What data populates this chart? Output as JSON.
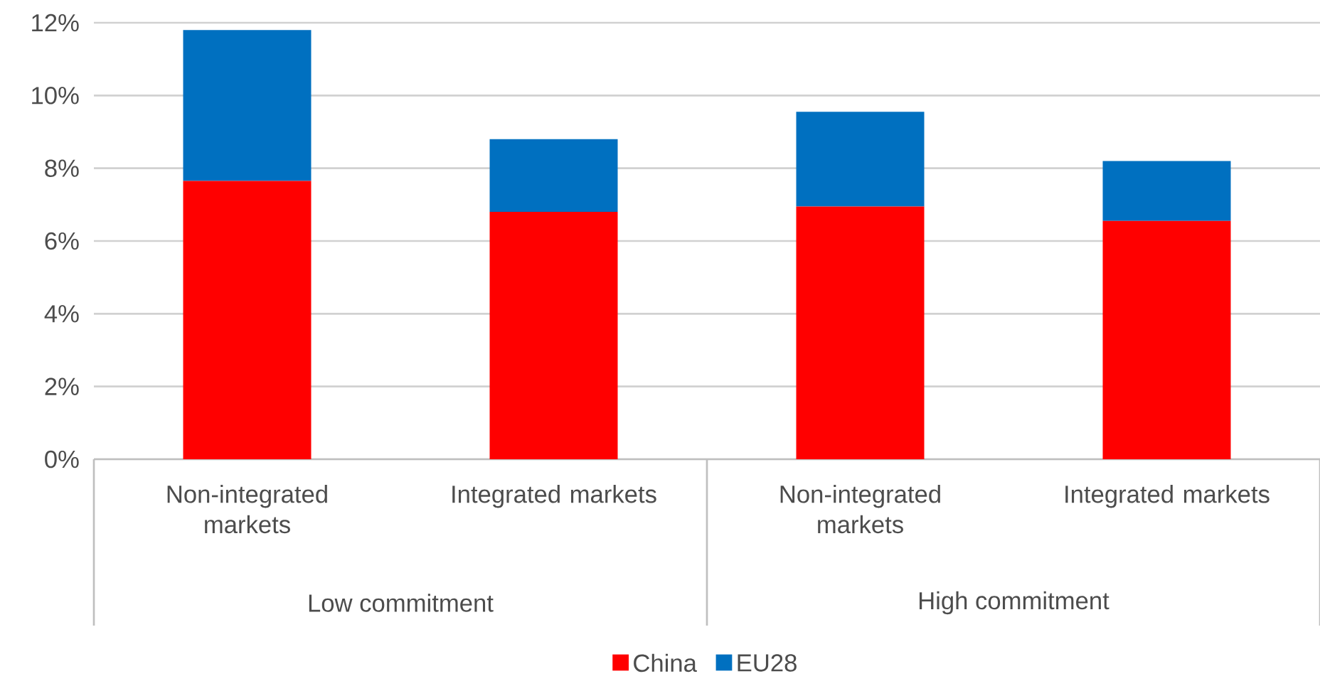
{
  "chart_data": {
    "type": "bar",
    "stacked": true,
    "categories": [
      "Non-integrated markets",
      "Integrated markets",
      "Non-integrated markets",
      "Integrated markets"
    ],
    "series": [
      {
        "name": "China",
        "color": "#ff0000",
        "values": [
          7.65,
          6.8,
          6.95,
          6.55
        ]
      },
      {
        "name": "EU28",
        "color": "#0070c0",
        "values": [
          4.15,
          2.0,
          2.6,
          1.65
        ]
      }
    ],
    "ylim": [
      0,
      12
    ],
    "yticks": [
      {
        "value": 0,
        "label": "0%"
      },
      {
        "value": 2,
        "label": "2%"
      },
      {
        "value": 4,
        "label": "4%"
      },
      {
        "value": 6,
        "label": "6%"
      },
      {
        "value": 8,
        "label": "8%"
      },
      {
        "value": 10,
        "label": "10%"
      },
      {
        "value": 12,
        "label": "12%"
      }
    ],
    "grid": "y",
    "legend": "bottom",
    "annotations": [
      "Low commitment",
      "High commitment"
    ]
  }
}
